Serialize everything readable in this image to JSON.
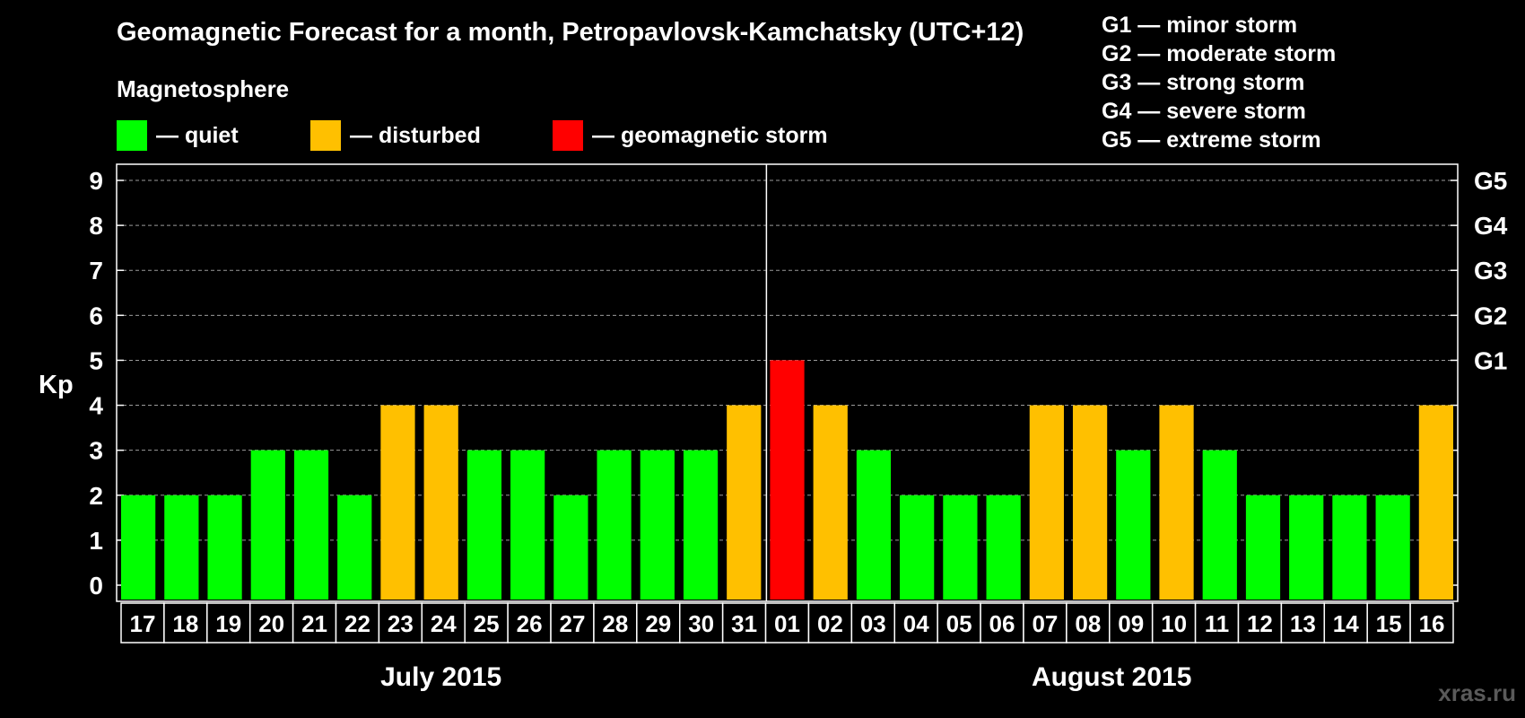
{
  "title": "Geomagnetic Forecast for a month, Petropavlovsk-Kamchatsky (UTC+12)",
  "legend": {
    "title": "Magnetosphere",
    "items": [
      {
        "label": "— quiet",
        "color": "#00ff00"
      },
      {
        "label": "— disturbed",
        "color": "#ffc000"
      },
      {
        "label": "— geomagnetic storm",
        "color": "#ff0000"
      }
    ]
  },
  "storm_scale": [
    "G1 — minor storm",
    "G2 — moderate storm",
    "G3 — strong storm",
    "G4 — severe storm",
    "G5 — extreme storm"
  ],
  "watermark": "xras.ru",
  "chart_data": {
    "type": "bar",
    "ylabel": "Kp",
    "ylim": [
      0,
      9
    ],
    "yticks": [
      "0",
      "1",
      "2",
      "3",
      "4",
      "5",
      "6",
      "7",
      "8",
      "9"
    ],
    "right_ticks": [
      {
        "kp": 5,
        "label": "G1"
      },
      {
        "kp": 6,
        "label": "G2"
      },
      {
        "kp": 7,
        "label": "G3"
      },
      {
        "kp": 8,
        "label": "G4"
      },
      {
        "kp": 9,
        "label": "G5"
      }
    ],
    "categories": [
      "17",
      "18",
      "19",
      "20",
      "21",
      "22",
      "23",
      "24",
      "25",
      "26",
      "27",
      "28",
      "29",
      "30",
      "31",
      "01",
      "02",
      "03",
      "04",
      "05",
      "06",
      "07",
      "08",
      "09",
      "10",
      "11",
      "12",
      "13",
      "14",
      "15",
      "16"
    ],
    "values": [
      2,
      2,
      2,
      3,
      3,
      2,
      4,
      4,
      3,
      3,
      2,
      3,
      3,
      3,
      4,
      5,
      4,
      3,
      2,
      2,
      2,
      4,
      4,
      3,
      4,
      3,
      2,
      2,
      2,
      2,
      4
    ],
    "status": [
      "quiet",
      "quiet",
      "quiet",
      "quiet",
      "quiet",
      "quiet",
      "disturbed",
      "disturbed",
      "quiet",
      "quiet",
      "quiet",
      "quiet",
      "quiet",
      "quiet",
      "disturbed",
      "storm",
      "disturbed",
      "quiet",
      "quiet",
      "quiet",
      "quiet",
      "disturbed",
      "disturbed",
      "quiet",
      "disturbed",
      "quiet",
      "quiet",
      "quiet",
      "quiet",
      "quiet",
      "disturbed"
    ],
    "colors": {
      "quiet": "#00ff00",
      "disturbed": "#ffc000",
      "storm": "#ff0000"
    },
    "months": [
      {
        "label": "July 2015",
        "start": 0,
        "end": 14
      },
      {
        "label": "August 2015",
        "start": 15,
        "end": 30
      }
    ],
    "grid": true
  }
}
